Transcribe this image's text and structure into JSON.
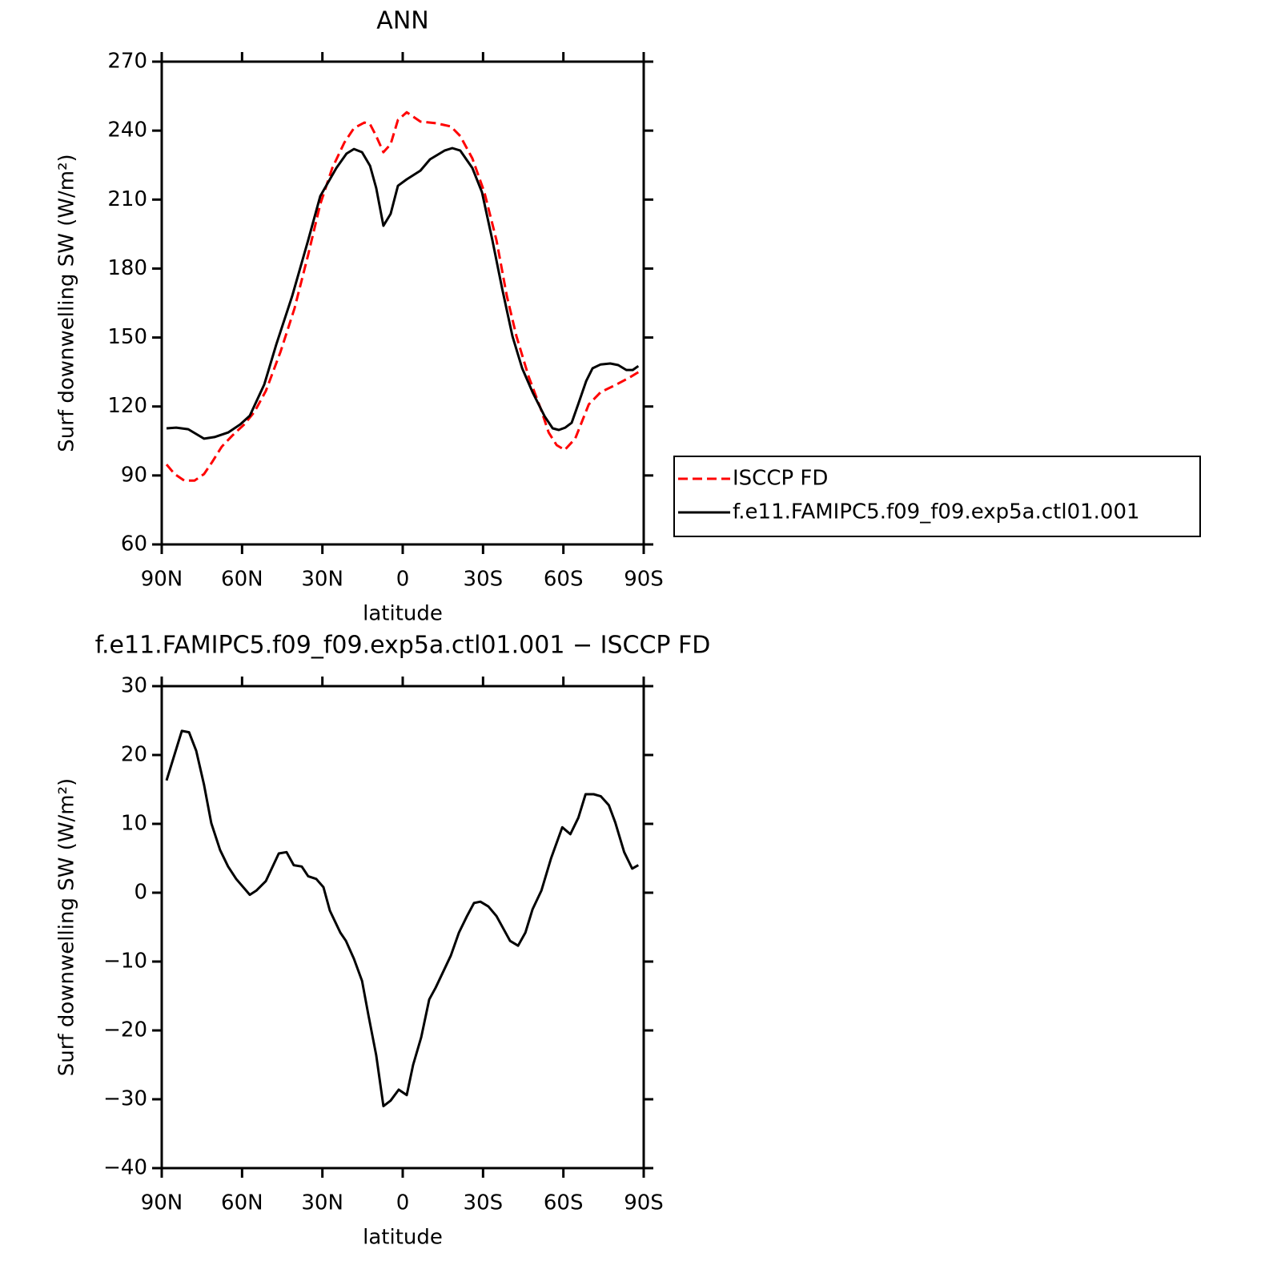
{
  "chart_data": [
    {
      "type": "line",
      "title": "ANN",
      "xlabel": "latitude",
      "ylabel": "Surf downwelling SW (W/m²)",
      "xlim": [
        90,
        -90
      ],
      "ylim": [
        60,
        270
      ],
      "xticks": [
        {
          "value": 90,
          "label": "90N"
        },
        {
          "value": 60,
          "label": "60N"
        },
        {
          "value": 30,
          "label": "30N"
        },
        0,
        {
          "value": -30,
          "label": "30S"
        },
        {
          "value": -60,
          "label": "60S"
        },
        {
          "value": -90,
          "label": "90S"
        }
      ],
      "yticks": [
        60,
        90,
        120,
        150,
        180,
        210,
        240,
        270
      ],
      "legend": "right",
      "series": [
        {
          "name": "ISCCP FD",
          "color": "#ff0000",
          "dashed": true,
          "x": [
            88.2,
            85.2,
            81.6,
            77.7,
            74.2,
            71.2,
            67.6,
            63.7,
            59.2,
            55.3,
            51.1,
            45.7,
            40.4,
            35.3,
            30.8,
            26.3,
            21.8,
            18.2,
            14.3,
            12.2,
            9.9,
            7.2,
            4.5,
            1.8,
            -1.5,
            -6.6,
            -12.6,
            -18,
            -21.5,
            -26,
            -30.5,
            -35,
            -38.9,
            -42.5,
            -47,
            -51.5,
            -54.5,
            -57.5,
            -60.5,
            -64.4,
            -69.5,
            -73.9,
            -79.9,
            -84.4,
            -88
          ],
          "values": [
            94.8,
            90.6,
            87.8,
            87.8,
            90.6,
            95.8,
            102.5,
            107.3,
            112.2,
            117.8,
            126.8,
            143.6,
            162.7,
            186,
            208,
            223.7,
            234.8,
            241.1,
            243.5,
            242.8,
            237.6,
            230.6,
            234.1,
            244.6,
            248,
            243.9,
            243.2,
            241.8,
            237.6,
            227.9,
            213.2,
            192.3,
            168,
            150.5,
            133.1,
            119.2,
            108.7,
            103.2,
            101.1,
            106,
            120.9,
            126.2,
            129.6,
            132.4,
            134.9
          ]
        },
        {
          "name": "f.e11.FAMIPC5.f09_f09.exp5a.ctl01.001",
          "color": "#000000",
          "dashed": false,
          "x": [
            88.2,
            84.6,
            80.1,
            74.2,
            70.3,
            65.2,
            60.7,
            57.1,
            51.7,
            47.2,
            41.3,
            35.3,
            30.8,
            24.8,
            21,
            18.2,
            15.2,
            12.2,
            9.9,
            7.2,
            4.5,
            1.8,
            -1.5,
            -6.6,
            -10.2,
            -15.6,
            -18.5,
            -21.5,
            -26,
            -29.6,
            -33.5,
            -37.1,
            -41,
            -44.6,
            -48.5,
            -53,
            -56,
            -58.3,
            -60.7,
            -63.1,
            -65.5,
            -68.5,
            -70.9,
            -73.9,
            -77.5,
            -80.5,
            -83.5,
            -85.9,
            -88
          ],
          "values": [
            110.5,
            110.8,
            110.1,
            106,
            106.7,
            108.7,
            112.2,
            116,
            129.6,
            147,
            168,
            192.3,
            211.5,
            223.7,
            230,
            232,
            230.6,
            224.7,
            215,
            198.6,
            203.8,
            216,
            218.8,
            222.6,
            227.5,
            231.3,
            232.4,
            231.3,
            223.7,
            213.2,
            192.3,
            171.4,
            150.5,
            136.6,
            126.2,
            115.7,
            110.5,
            109.8,
            110.8,
            112.9,
            120.9,
            131,
            136.6,
            138.3,
            138.7,
            138,
            135.9,
            135.9,
            137.6
          ]
        }
      ]
    },
    {
      "type": "line",
      "title": "f.e11.FAMIPC5.f09_f09.exp5a.ctl01.001 − ISCCP FD",
      "xlabel": "latitude",
      "ylabel": "Surf downwelling SW (W/m²)",
      "xlim": [
        90,
        -90
      ],
      "ylim": [
        -40,
        30
      ],
      "xticks": [
        {
          "value": 90,
          "label": "90N"
        },
        {
          "value": 60,
          "label": "60N"
        },
        {
          "value": 30,
          "label": "30N"
        },
        0,
        {
          "value": -30,
          "label": "30S"
        },
        {
          "value": -60,
          "label": "60S"
        },
        {
          "value": -90,
          "label": "90S"
        }
      ],
      "yticks": [
        {
          "value": -40,
          "label": "−40"
        },
        {
          "value": -30,
          "label": "−30"
        },
        {
          "value": -20,
          "label": "−20"
        },
        {
          "value": -10,
          "label": "−10"
        },
        0,
        10,
        20,
        30
      ],
      "series": [
        {
          "color": "#000000",
          "dashed": false,
          "x": [
            88.2,
            82.5,
            79.8,
            77.1,
            74.2,
            71.5,
            68.2,
            65.2,
            62.2,
            57.1,
            54.7,
            51.1,
            46.3,
            43.4,
            40.7,
            37.7,
            35.3,
            32.3,
            29.6,
            27.2,
            23.3,
            21.2,
            18.2,
            15.2,
            12.8,
            9.9,
            7.2,
            4.5,
            1.5,
            -1.5,
            -3.9,
            -6.9,
            -9.9,
            -12.3,
            -18,
            -21,
            -24,
            -26.6,
            -29,
            -32,
            -35,
            -40.1,
            -43.1,
            -45.8,
            -48.5,
            -51.8,
            -55.4,
            -59.6,
            -62.6,
            -65.6,
            -68.3,
            -71.3,
            -74,
            -77,
            -79.4,
            -82.7,
            -85.7,
            -88
          ],
          "values": [
            16.3,
            23.5,
            23.3,
            20.6,
            15.7,
            10.1,
            6.2,
            3.8,
            2,
            -0.3,
            0.3,
            1.7,
            5.7,
            5.9,
            4,
            3.8,
            2.4,
            2,
            0.8,
            -2.6,
            -5.8,
            -7,
            -9.6,
            -12.8,
            -17.8,
            -23.6,
            -31,
            -30.2,
            -28.6,
            -29.4,
            -25,
            -21,
            -15.5,
            -13.8,
            -9.1,
            -5.8,
            -3.4,
            -1.5,
            -1.3,
            -2,
            -3.4,
            -7,
            -7.7,
            -5.8,
            -2.4,
            0.3,
            5,
            9.5,
            8.5,
            10.9,
            14.3,
            14.3,
            14,
            12.7,
            10.2,
            5.9,
            3.5,
            4
          ]
        }
      ]
    }
  ]
}
